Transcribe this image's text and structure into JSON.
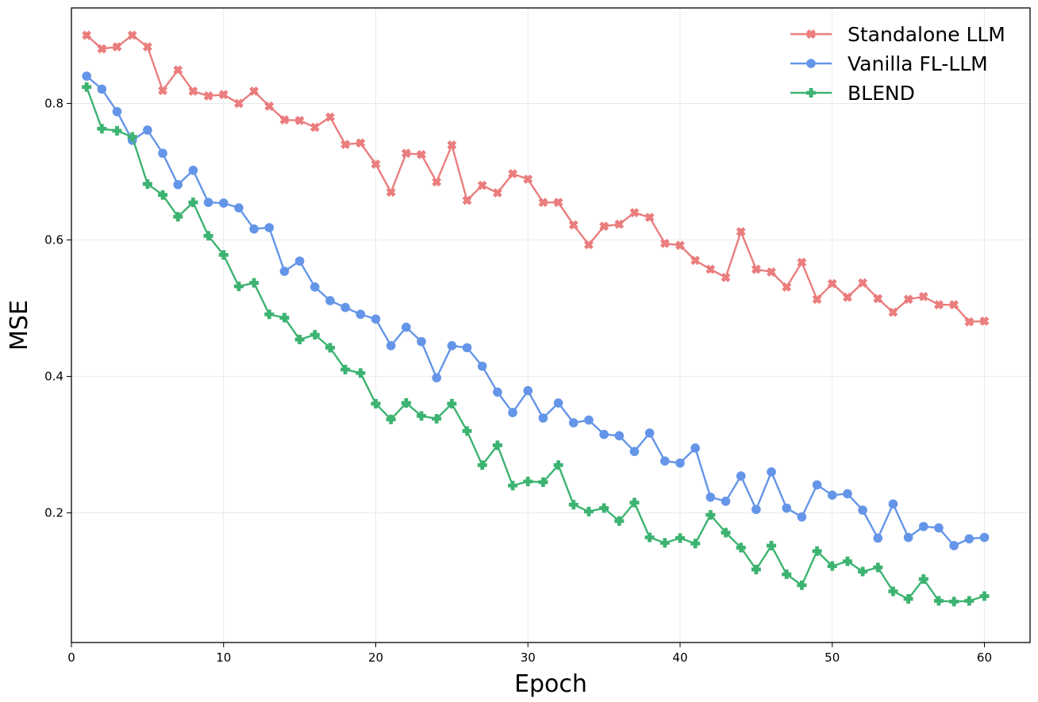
{
  "chart_data": {
    "type": "line",
    "title": "",
    "xlabel": "Epoch",
    "ylabel": "MSE",
    "xlim": [
      0,
      63
    ],
    "ylim": [
      0.01,
      0.94
    ],
    "xticks": [
      0,
      10,
      20,
      30,
      40,
      50,
      60
    ],
    "yticks": [
      0.2,
      0.4,
      0.6,
      0.8
    ],
    "ytick_labels": [
      "0.2",
      "0.4",
      "0.6",
      "0.8"
    ],
    "grid": true,
    "legend_position": "top-right",
    "x": [
      1,
      2,
      3,
      4,
      5,
      6,
      7,
      8,
      9,
      10,
      11,
      12,
      13,
      14,
      15,
      16,
      17,
      18,
      19,
      20,
      21,
      22,
      23,
      24,
      25,
      26,
      27,
      28,
      29,
      30,
      31,
      32,
      33,
      34,
      35,
      36,
      37,
      38,
      39,
      40,
      41,
      42,
      43,
      44,
      45,
      46,
      47,
      48,
      49,
      50,
      51,
      52,
      53,
      54,
      55,
      56,
      57,
      58,
      59,
      60
    ],
    "series": [
      {
        "name": "Standalone LLM",
        "color": "#ea7d7d",
        "marker": "x",
        "values": [
          0.9,
          0.88,
          0.883,
          0.9,
          0.883,
          0.819,
          0.849,
          0.818,
          0.811,
          0.813,
          0.8,
          0.818,
          0.796,
          0.776,
          0.775,
          0.765,
          0.78,
          0.74,
          0.742,
          0.711,
          0.67,
          0.727,
          0.725,
          0.685,
          0.739,
          0.658,
          0.68,
          0.669,
          0.697,
          0.689,
          0.655,
          0.655,
          0.622,
          0.593,
          0.62,
          0.623,
          0.64,
          0.633,
          0.595,
          0.592,
          0.57,
          0.557,
          0.545,
          0.612,
          0.557,
          0.553,
          0.531,
          0.567,
          0.513,
          0.536,
          0.516,
          0.537,
          0.514,
          0.494,
          0.513,
          0.517,
          0.505,
          0.505,
          0.48,
          0.481
        ]
      },
      {
        "name": "Vanilla FL-LLM",
        "color": "#6495e8",
        "marker": "circle",
        "values": [
          0.84,
          0.821,
          0.788,
          0.746,
          0.761,
          0.727,
          0.681,
          0.702,
          0.655,
          0.654,
          0.647,
          0.616,
          0.618,
          0.554,
          0.569,
          0.531,
          0.511,
          0.501,
          0.491,
          0.484,
          0.445,
          0.472,
          0.451,
          0.398,
          0.445,
          0.442,
          0.415,
          0.377,
          0.347,
          0.379,
          0.339,
          0.361,
          0.332,
          0.336,
          0.315,
          0.313,
          0.29,
          0.317,
          0.276,
          0.273,
          0.295,
          0.223,
          0.217,
          0.254,
          0.205,
          0.26,
          0.207,
          0.194,
          0.241,
          0.226,
          0.228,
          0.204,
          0.163,
          0.213,
          0.164,
          0.18,
          0.178,
          0.152,
          0.162,
          0.164
        ]
      },
      {
        "name": "BLEND",
        "color": "#3cb371",
        "marker": "plus",
        "values": [
          0.824,
          0.763,
          0.76,
          0.751,
          0.682,
          0.666,
          0.634,
          0.655,
          0.606,
          0.578,
          0.532,
          0.537,
          0.491,
          0.486,
          0.454,
          0.461,
          0.442,
          0.41,
          0.405,
          0.36,
          0.337,
          0.361,
          0.342,
          0.338,
          0.36,
          0.32,
          0.27,
          0.299,
          0.24,
          0.246,
          0.245,
          0.27,
          0.212,
          0.202,
          0.207,
          0.188,
          0.215,
          0.164,
          0.156,
          0.163,
          0.155,
          0.197,
          0.171,
          0.149,
          0.117,
          0.152,
          0.11,
          0.094,
          0.144,
          0.122,
          0.129,
          0.114,
          0.12,
          0.085,
          0.074,
          0.103,
          0.071,
          0.07,
          0.071,
          0.078
        ]
      }
    ]
  }
}
